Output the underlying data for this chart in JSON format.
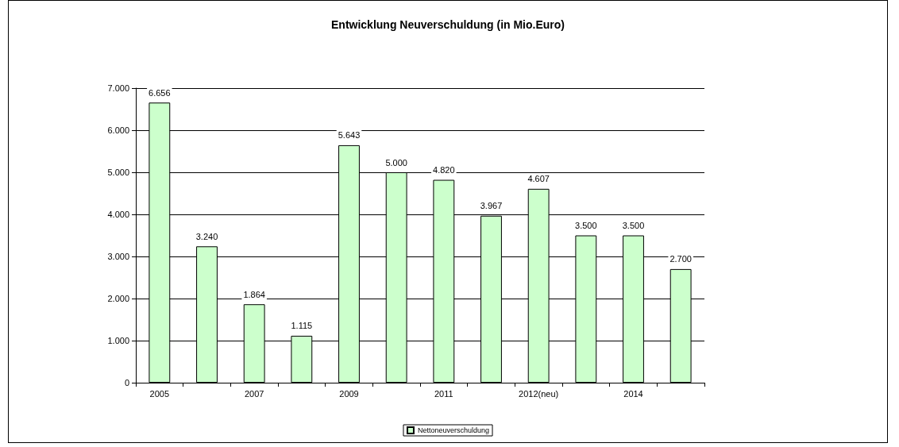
{
  "chart_data": {
    "type": "bar",
    "title": "Entwicklung Neuverschuldung (in Mio.Euro)",
    "categories": [
      "2005",
      null,
      "2007",
      null,
      "2009",
      null,
      "2011",
      null,
      "2012(neu)",
      null,
      "2014",
      null
    ],
    "series": [
      {
        "name": "Nettoneuverschuldung",
        "color": "#ccffcc",
        "values": [
          6656,
          3240,
          1864,
          1115,
          5643,
          5000,
          4820,
          3967,
          4607,
          3500,
          3500,
          2700
        ],
        "value_labels": [
          "6.656",
          "3.240",
          "1.864",
          "1.115",
          "5.643",
          "5.000",
          "4.820",
          "3.967",
          "4.607",
          "3.500",
          "3.500",
          "2.700"
        ]
      }
    ],
    "ylim": [
      0,
      7000
    ],
    "yticks": [
      {
        "value": 0,
        "label": "0"
      },
      {
        "value": 1000,
        "label": "1.000"
      },
      {
        "value": 2000,
        "label": "2.000"
      },
      {
        "value": 3000,
        "label": "3.000"
      },
      {
        "value": 4000,
        "label": "4.000"
      },
      {
        "value": 5000,
        "label": "5.000"
      },
      {
        "value": 6000,
        "label": "6.000"
      },
      {
        "value": 7000,
        "label": "7.000"
      }
    ],
    "grid": "y",
    "legend": "bottom"
  }
}
